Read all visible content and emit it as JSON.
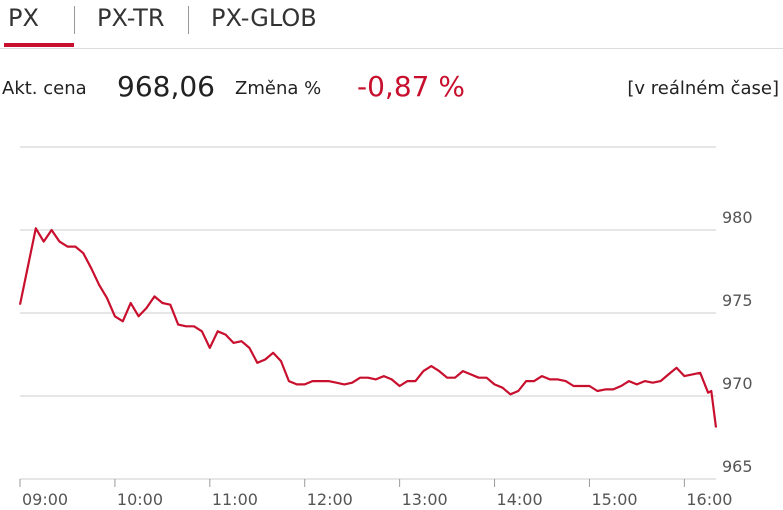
{
  "tabs": [
    "PX",
    "PX-TR",
    "PX-GLOB"
  ],
  "quote": {
    "price_label": "Akt. cena",
    "price": "968,06",
    "change_label": "Změna %",
    "change": "-0,87 %",
    "note": "[v reálném čase]"
  },
  "chart_data": {
    "type": "line",
    "color": "#c8102e",
    "grid": true,
    "x": [
      "09:00",
      "09:05",
      "09:10",
      "09:15",
      "09:20",
      "09:25",
      "09:30",
      "09:35",
      "09:40",
      "09:45",
      "09:50",
      "09:55",
      "10:00",
      "10:05",
      "10:10",
      "10:15",
      "10:20",
      "10:25",
      "10:30",
      "10:35",
      "10:40",
      "10:45",
      "10:50",
      "10:55",
      "11:00",
      "11:05",
      "11:10",
      "11:15",
      "11:20",
      "11:25",
      "11:30",
      "11:35",
      "11:40",
      "11:45",
      "11:50",
      "11:55",
      "12:00",
      "12:05",
      "12:10",
      "12:15",
      "12:20",
      "12:25",
      "12:30",
      "12:35",
      "12:40",
      "12:45",
      "12:50",
      "12:55",
      "13:00",
      "13:05",
      "13:10",
      "13:15",
      "13:20",
      "13:25",
      "13:30",
      "13:35",
      "13:40",
      "13:45",
      "13:50",
      "13:55",
      "14:00",
      "14:05",
      "14:10",
      "14:15",
      "14:20",
      "14:25",
      "14:30",
      "14:35",
      "14:40",
      "14:45",
      "14:50",
      "14:55",
      "15:00",
      "15:05",
      "15:10",
      "15:15",
      "15:20",
      "15:25",
      "15:30",
      "15:35",
      "15:40",
      "15:45",
      "15:50",
      "15:55",
      "16:00",
      "16:05",
      "16:10",
      "16:15",
      "16:17",
      "16:20"
    ],
    "values": [
      975.5,
      977.8,
      980.1,
      979.3,
      980.0,
      979.3,
      979.0,
      979.0,
      978.6,
      977.7,
      976.7,
      975.9,
      974.8,
      974.5,
      975.6,
      974.8,
      975.3,
      976.0,
      975.6,
      975.5,
      974.3,
      974.2,
      974.2,
      973.9,
      972.9,
      973.9,
      973.7,
      973.2,
      973.3,
      972.9,
      972.0,
      972.2,
      972.6,
      972.1,
      970.9,
      970.7,
      970.7,
      970.9,
      970.9,
      970.9,
      970.8,
      970.7,
      970.8,
      971.1,
      971.1,
      971.0,
      971.2,
      971.0,
      970.6,
      970.9,
      970.9,
      971.5,
      971.8,
      971.5,
      971.1,
      971.1,
      971.5,
      971.3,
      971.1,
      971.1,
      970.7,
      970.5,
      970.1,
      970.3,
      970.9,
      970.9,
      971.2,
      971.0,
      971.0,
      970.9,
      970.6,
      970.6,
      970.6,
      970.3,
      970.4,
      970.4,
      970.6,
      970.9,
      970.7,
      970.9,
      970.8,
      970.9,
      971.3,
      971.7,
      971.2,
      971.3,
      971.4,
      970.2,
      970.3,
      968.1
    ],
    "xlim": [
      "09:00",
      "16:20"
    ],
    "xticks": [
      "09:00",
      "10:00",
      "11:00",
      "12:00",
      "13:00",
      "14:00",
      "15:00",
      "16:00"
    ],
    "ylim": [
      965,
      985
    ],
    "yticks": [
      965,
      970,
      975,
      980
    ]
  }
}
